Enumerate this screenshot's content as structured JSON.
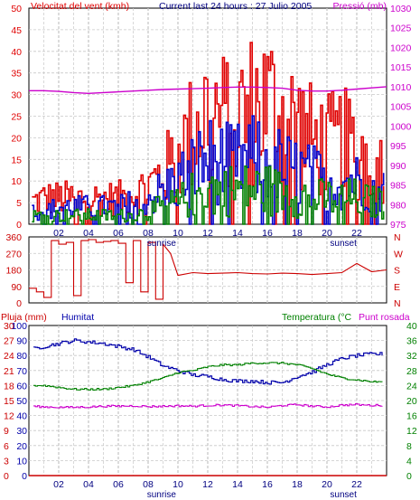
{
  "header": {
    "wind_label": "Velocitat del vent (kmh)",
    "title": "Current last 24 hours : 27 Julio 2005",
    "pressure_label": "Pressió (mb)"
  },
  "bottom_header": {
    "rain_label": "Pluja (mm)",
    "humidity_label": "Humitat",
    "temperature_label": "Temperatura (°C",
    "dewpoint_label": "Punt rosada"
  },
  "colors": {
    "wind_gust": "#e00000",
    "wind_avg": "#0000cc",
    "wind_min": "#008000",
    "pressure": "#cc00cc",
    "direction": "#cc0000",
    "humidity": "#0000aa",
    "temperature": "#008000",
    "dewpoint": "#cc00cc",
    "rain": "#cc0000",
    "grid": "#c8c8c8"
  },
  "x_axis": {
    "ticks": [
      "02",
      "04",
      "06",
      "08",
      "10",
      "12",
      "14",
      "16",
      "18",
      "20",
      "22"
    ],
    "sunrise_label": "sunrise",
    "sunset_label": "sunset",
    "sunrise_hour": 8.9,
    "sunset_hour": 21.1
  },
  "chart_data": [
    {
      "type": "line",
      "xlim": [
        0,
        24
      ],
      "ylim_left": [
        0,
        50
      ],
      "ylim_right": [
        975,
        1030
      ],
      "left_ticks": [
        "0",
        "5",
        "10",
        "15",
        "20",
        "25",
        "30",
        "35",
        "40",
        "45",
        "50"
      ],
      "right_ticks": [
        "975",
        "980",
        "985",
        "990",
        "995",
        "1000",
        "1005",
        "1010",
        "1015",
        "1020",
        "1025",
        "1030"
      ],
      "x": [
        0,
        1,
        2,
        3,
        4,
        5,
        6,
        7,
        8,
        9,
        10,
        11,
        12,
        13,
        14,
        15,
        16,
        17,
        18,
        19,
        20,
        21,
        22,
        23,
        24
      ],
      "series": [
        {
          "values": [
            5,
            6,
            6,
            6,
            6,
            6,
            6,
            7,
            9,
            12,
            16,
            22,
            27,
            24,
            25,
            27,
            28,
            25,
            23,
            19,
            18,
            19,
            17,
            16,
            15
          ]
        },
        {
          "values": [
            3,
            3,
            4,
            4,
            4,
            4,
            4,
            5,
            6,
            8,
            10,
            13,
            15,
            14,
            14,
            15,
            15,
            13,
            12,
            11,
            10,
            10,
            10,
            9,
            9
          ]
        },
        {
          "values": [
            2,
            2,
            2,
            2,
            2,
            2,
            2,
            2,
            3,
            4,
            5,
            7,
            8,
            8,
            8,
            8,
            8,
            7,
            7,
            6,
            6,
            6,
            6,
            5,
            5
          ]
        },
        {
          "values": [
            1009,
            1009,
            1008.8,
            1008.5,
            1008.3,
            1008.5,
            1008.7,
            1008.9,
            1009.1,
            1009.3,
            1009.4,
            1009.5,
            1009.6,
            1009.8,
            1009.9,
            1009.9,
            1009.8,
            1009.6,
            1009.1,
            1008.9,
            1008.9,
            1009.1,
            1009.4,
            1009.7,
            1010
          ]
        }
      ]
    },
    {
      "type": "line",
      "xlim": [
        0,
        24
      ],
      "ylim": [
        0,
        360
      ],
      "left_ticks": [
        "0",
        "90",
        "180",
        "270",
        "360"
      ],
      "right_ticks": [
        "N",
        "E",
        "S",
        "W",
        "N"
      ],
      "x": [
        0,
        0.5,
        1,
        1.5,
        2,
        2.5,
        3,
        3.5,
        4,
        4.5,
        5,
        5.5,
        6,
        6.5,
        7,
        7.5,
        8,
        8.5,
        9,
        9.5,
        10,
        11,
        12,
        13,
        14,
        15,
        16,
        17,
        18,
        19,
        20,
        21,
        22,
        23,
        24
      ],
      "series": [
        {
          "values": [
            80,
            60,
            30,
            340,
            320,
            330,
            40,
            340,
            345,
            330,
            335,
            340,
            325,
            110,
            340,
            60,
            330,
            20,
            320,
            270,
            150,
            165,
            160,
            162,
            165,
            160,
            158,
            162,
            160,
            155,
            160,
            165,
            215,
            170,
            180
          ]
        }
      ]
    },
    {
      "type": "line",
      "xlim": [
        0,
        24
      ],
      "ylim_rain": [
        0,
        30
      ],
      "ylim_humidity": [
        0,
        100
      ],
      "ylim_temperature": [
        0,
        40
      ],
      "left_ticks_rain": [
        "0",
        "3",
        "6",
        "9",
        "12",
        "15",
        "18",
        "21",
        "24",
        "27",
        "30"
      ],
      "left_ticks_humidity": [
        "0",
        "10",
        "20",
        "30",
        "40",
        "50",
        "60",
        "70",
        "80",
        "90",
        "100"
      ],
      "right_ticks": [
        "0",
        "4",
        "8",
        "12",
        "16",
        "20",
        "24",
        "28",
        "32",
        "36",
        "40"
      ],
      "x": [
        0,
        1,
        2,
        3,
        4,
        5,
        6,
        7,
        8,
        9,
        10,
        11,
        12,
        13,
        14,
        15,
        16,
        17,
        18,
        19,
        20,
        21,
        22,
        23,
        24
      ],
      "series": [
        {
          "values": [
            84,
            86,
            88,
            90,
            89,
            88,
            86,
            84,
            79,
            73,
            70,
            67,
            66,
            64,
            63,
            63,
            62,
            62,
            66,
            69,
            74,
            78,
            80,
            81,
            81
          ]
        },
        {
          "values": [
            24,
            24,
            23.5,
            23,
            23,
            23,
            23.5,
            24,
            25,
            26,
            27.5,
            28,
            29,
            29.5,
            29.5,
            30,
            30,
            30,
            29.5,
            28.5,
            27,
            26,
            25.5,
            25,
            25
          ]
        },
        {
          "values": [
            18.5,
            18.3,
            18.2,
            18.2,
            18.3,
            18.5,
            18.5,
            18.6,
            18.4,
            18.5,
            18.6,
            18.5,
            18.7,
            18.8,
            18.6,
            18.4,
            18.2,
            18.7,
            18.9,
            18.5,
            18.3,
            18.8,
            18.9,
            18.7,
            18.8
          ]
        },
        {
          "values": [
            0,
            0,
            0,
            0,
            0,
            0,
            0,
            0,
            0,
            0,
            0,
            0,
            0,
            0,
            0,
            0,
            0,
            0,
            0,
            0,
            0,
            0,
            0,
            0,
            0
          ]
        }
      ]
    }
  ]
}
